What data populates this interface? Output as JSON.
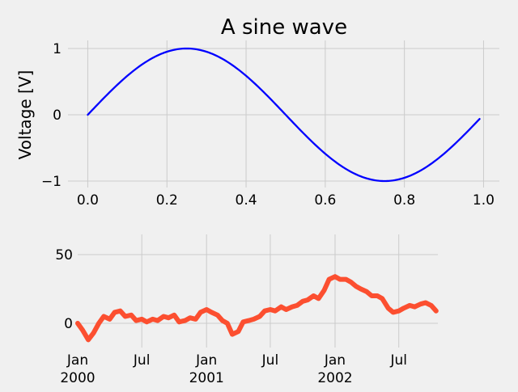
{
  "colors": {
    "background": "#f0f0f0",
    "grid": "#cbcbcb",
    "sine_line": "#0000ff",
    "random_walk": "#fc4f30"
  },
  "chart_data": [
    {
      "type": "line",
      "title": "A sine wave",
      "xlabel": "",
      "ylabel": "Voltage [V]",
      "xlim": [
        -0.05,
        1.04
      ],
      "ylim": [
        -1.0,
        1.0
      ],
      "x_ticks": [
        "0.0",
        "0.2",
        "0.4",
        "0.6",
        "0.8",
        "1.0"
      ],
      "y_ticks": [
        "1",
        "0",
        "−1"
      ],
      "grid": true,
      "series": [
        {
          "x": [
            0.0,
            0.05,
            0.1,
            0.15,
            0.2,
            0.25,
            0.3,
            0.35,
            0.4,
            0.45,
            0.5,
            0.55,
            0.6,
            0.65,
            0.7,
            0.75,
            0.8,
            0.85,
            0.9,
            0.95,
            0.99
          ],
          "y": [
            0.0,
            0.309,
            0.588,
            0.809,
            0.951,
            1.0,
            0.951,
            0.809,
            0.588,
            0.309,
            0.0,
            -0.309,
            -0.588,
            -0.809,
            -0.951,
            -1.0,
            -0.951,
            -0.809,
            -0.588,
            -0.309,
            -0.063
          ]
        }
      ]
    },
    {
      "type": "line",
      "title": "",
      "xlabel": "",
      "ylabel": "",
      "xlim": [
        "2000-01-01",
        "2002-10-20"
      ],
      "ylim": [
        -15,
        65
      ],
      "y_ticks": [
        "50",
        "0"
      ],
      "x_ticks": [
        {
          "date": "2000-01-01",
          "line1": "Jan",
          "line2": "2000"
        },
        {
          "date": "2000-07-01",
          "line1": "Jul",
          "line2": ""
        },
        {
          "date": "2001-01-01",
          "line1": "Jan",
          "line2": "2001"
        },
        {
          "date": "2001-07-01",
          "line1": "Jul",
          "line2": ""
        },
        {
          "date": "2002-01-01",
          "line1": "Jan",
          "line2": "2002"
        },
        {
          "date": "2002-07-01",
          "line1": "Jul",
          "line2": ""
        }
      ],
      "grid": true,
      "series": [
        {
          "x": [
            "2000-01-01",
            "2000-01-15",
            "2000-01-31",
            "2000-02-15",
            "2000-03-01",
            "2000-03-15",
            "2000-04-01",
            "2000-04-15",
            "2000-05-01",
            "2000-05-15",
            "2000-06-01",
            "2000-06-15",
            "2000-07-01",
            "2000-07-15",
            "2000-08-01",
            "2000-08-15",
            "2000-09-01",
            "2000-09-15",
            "2000-10-01",
            "2000-10-15",
            "2000-11-01",
            "2000-11-15",
            "2000-12-01",
            "2000-12-15",
            "2001-01-01",
            "2001-01-15",
            "2001-02-01",
            "2001-02-15",
            "2001-03-01",
            "2001-03-15",
            "2001-04-01",
            "2001-04-15",
            "2001-05-01",
            "2001-05-15",
            "2001-06-01",
            "2001-06-15",
            "2001-07-01",
            "2001-07-15",
            "2001-08-01",
            "2001-08-15",
            "2001-09-01",
            "2001-09-15",
            "2001-10-01",
            "2001-10-15",
            "2001-11-01",
            "2001-11-15",
            "2001-12-01",
            "2001-12-15",
            "2002-01-01",
            "2002-01-15",
            "2002-02-01",
            "2002-02-15",
            "2002-03-01",
            "2002-03-15",
            "2002-04-01",
            "2002-04-15",
            "2002-05-01",
            "2002-05-15",
            "2002-06-01",
            "2002-06-15",
            "2002-07-01",
            "2002-07-15",
            "2002-08-01",
            "2002-08-15",
            "2002-09-01",
            "2002-09-15",
            "2002-10-01",
            "2002-10-15"
          ],
          "y": [
            0,
            -5,
            -12,
            -7,
            0,
            5,
            3,
            8,
            9,
            5,
            6,
            2,
            3,
            1,
            3,
            2,
            5,
            4,
            6,
            1,
            2,
            4,
            3,
            8,
            10,
            8,
            6,
            2,
            0,
            -8,
            -6,
            1,
            2,
            3,
            5,
            9,
            10,
            9,
            12,
            10,
            12,
            13,
            16,
            17,
            20,
            18,
            24,
            32,
            34,
            32,
            32,
            30,
            27,
            25,
            23,
            20,
            20,
            18,
            11,
            8,
            9,
            11,
            13,
            12,
            14,
            15,
            13,
            9
          ]
        }
      ]
    }
  ]
}
